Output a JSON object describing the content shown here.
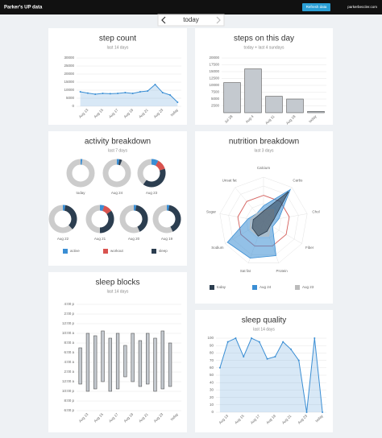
{
  "header": {
    "title": "Parker's UP data",
    "button": "Refresh data",
    "site": "parkerbeccler.com"
  },
  "nav": {
    "label": "today"
  },
  "chart_data": [
    {
      "type": "line",
      "title": "step count",
      "subtitle": "last 14 days",
      "color": "#3a8ed4",
      "categories": [
        null,
        "Aug 13",
        null,
        "Aug 15",
        null,
        "Aug 17",
        null,
        "Aug 19",
        null,
        "Aug 21",
        null,
        "Aug 23",
        null,
        "today"
      ],
      "values": [
        9000,
        8200,
        7500,
        8000,
        7800,
        8000,
        8500,
        8000,
        9000,
        9500,
        13500,
        8500,
        7000,
        2500
      ],
      "ylim": [
        0,
        30000
      ],
      "yticks": [
        0,
        5000,
        10000,
        15000,
        20000,
        25000,
        30000
      ],
      "grid": true
    },
    {
      "type": "bar",
      "title": "steps on this day",
      "subtitle": "today + last 4 sundays",
      "color": "#c4c9cf",
      "categories": [
        "Jul 28",
        "Aug 4",
        "Aug 11",
        "Aug 18",
        "today"
      ],
      "values": [
        11000,
        16000,
        6000,
        5000,
        500
      ],
      "ylim": [
        0,
        20000
      ],
      "yticks": [
        2500,
        5000,
        7500,
        10000,
        12500,
        15000,
        17500,
        20000
      ],
      "grid": true
    },
    {
      "type": "donut",
      "title": "activity breakdown",
      "subtitle": "last 7 days",
      "categories": [
        "today",
        "Aug 24",
        "Aug 23",
        "Aug 22",
        "Aug 21",
        "Aug 20",
        "Aug 19"
      ],
      "series": [
        {
          "name": "active",
          "color": "#3a8ed4",
          "values": [
            2,
            3,
            8,
            3,
            5,
            3,
            3
          ]
        },
        {
          "name": "workout",
          "color": "#d9534f",
          "values": [
            0,
            0,
            12,
            0,
            10,
            0,
            0
          ]
        },
        {
          "name": "sleep",
          "color": "#2c3e50",
          "values": [
            0,
            3,
            40,
            35,
            35,
            40,
            40
          ]
        }
      ],
      "ylim": [
        0,
        100
      ]
    },
    {
      "type": "radar",
      "title": "nutrition breakdown",
      "subtitle": "last 3 days",
      "categories": [
        "Calcium",
        "Carbs",
        "Chol",
        "Fiber",
        "Protein",
        "Sat fat",
        "Sodium",
        "Sugar",
        "Unsat fat"
      ],
      "series": [
        {
          "name": "today",
          "color": "#2c3e50",
          "values": [
            40,
            150,
            40,
            30,
            40,
            60,
            50,
            40,
            30
          ]
        },
        {
          "name": "Aug 24",
          "color": "#3a8ed4",
          "values": [
            60,
            160,
            60,
            40,
            140,
            150,
            160,
            60,
            40
          ]
        },
        {
          "name": "Aug 23",
          "color": "#bbbbbb",
          "values": [
            40,
            60,
            40,
            30,
            60,
            60,
            60,
            50,
            40
          ]
        }
      ],
      "rlim": [
        0,
        170
      ],
      "target": 100,
      "target_color": "#d9534f"
    },
    {
      "type": "range",
      "title": "sleep blocks",
      "subtitle": "last 14 days",
      "color": "#c4c9cf",
      "categories": [
        null,
        "Aug 13",
        null,
        "Aug 15",
        null,
        "Aug 17",
        null,
        "Aug 19",
        null,
        "Aug 21",
        null,
        "Aug 23",
        null,
        "today"
      ],
      "low": [
        23.5,
        22,
        22.5,
        24,
        22,
        22.5,
        25,
        24,
        23,
        23.5,
        22,
        22.5,
        23,
        null
      ],
      "high": [
        31,
        34,
        33.5,
        34.5,
        33,
        34,
        31.5,
        34,
        32.5,
        34,
        33,
        34.5,
        32,
        null
      ],
      "ylim": [
        18,
        40
      ],
      "yticks": [
        {
          "value": 18,
          "label": "6:00 p"
        },
        {
          "value": 20,
          "label": "8:00 p"
        },
        {
          "value": 22,
          "label": "10:00 p"
        },
        {
          "value": 24,
          "label": "12:00 a"
        },
        {
          "value": 26,
          "label": "2:00 a"
        },
        {
          "value": 28,
          "label": "4:00 a"
        },
        {
          "value": 30,
          "label": "6:00 a"
        },
        {
          "value": 32,
          "label": "8:00 a"
        },
        {
          "value": 34,
          "label": "10:00 a"
        },
        {
          "value": 36,
          "label": "12:00 p"
        },
        {
          "value": 38,
          "label": "2:00 p"
        },
        {
          "value": 40,
          "label": "4:00 p"
        }
      ],
      "grid": true
    },
    {
      "type": "line",
      "title": "sleep quality",
      "subtitle": "last 14 days",
      "color": "#3a8ed4",
      "categories": [
        null,
        "Aug 13",
        null,
        "Aug 15",
        null,
        "Aug 17",
        null,
        "Aug 19",
        null,
        "Aug 21",
        null,
        "Aug 23",
        null,
        "today"
      ],
      "values": [
        60,
        95,
        100,
        75,
        100,
        95,
        72,
        75,
        95,
        85,
        70,
        0,
        100,
        0
      ],
      "ylim": [
        0,
        100
      ],
      "yticks": [
        0,
        10,
        20,
        30,
        40,
        50,
        60,
        70,
        80,
        90,
        100
      ],
      "grid": true
    }
  ]
}
